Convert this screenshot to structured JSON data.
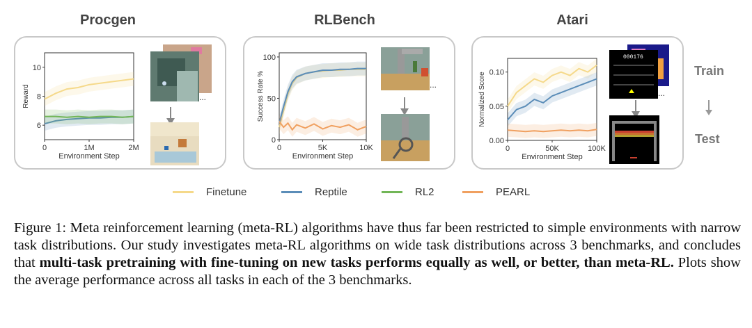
{
  "panels": {
    "procgen": {
      "title": "Procgen",
      "xlabel": "Environment Step",
      "ylabel": "Reward",
      "xticks": [
        "0",
        "1M",
        "2M"
      ],
      "yticks": [
        "6",
        "8",
        "10"
      ]
    },
    "rlbench": {
      "title": "RLBench",
      "xlabel": "Environment Step",
      "ylabel": "Success Rate %",
      "xticks": [
        "0",
        "5K",
        "10K"
      ],
      "yticks": [
        "0",
        "50",
        "100"
      ]
    },
    "atari": {
      "title": "Atari",
      "xlabel": "Environment Step",
      "ylabel": "Normalized Score",
      "xticks": [
        "0",
        "50K",
        "100K"
      ],
      "yticks": [
        "0.00",
        "0.05",
        "0.10"
      ],
      "game_score": "000176"
    }
  },
  "side": {
    "train": "Train",
    "test": "Test"
  },
  "legend": [
    {
      "name": "Finetune",
      "color": "#f5d98a"
    },
    {
      "name": "Reptile",
      "color": "#5b8db8"
    },
    {
      "name": "RL2",
      "color": "#72b657"
    },
    {
      "name": "PEARL",
      "color": "#f0a060"
    }
  ],
  "caption": {
    "part1": "Figure 1: Meta reinforcement learning (meta-RL) algorithms have thus far been restricted to simple environments with narrow task distributions. Our study investigates meta-RL algorithms on wide task distributions across 3 benchmarks, and concludes that ",
    "bold": "multi-task pretraining with fine-tuning on new tasks performs equally as well, or better, than meta-RL.",
    "part2": " Plots show the average performance across all tasks in each of the 3 benchmarks."
  },
  "chart_data": [
    {
      "type": "line",
      "title": "Procgen",
      "xlabel": "Environment Step",
      "ylabel": "Reward",
      "xlim": [
        0,
        2000000
      ],
      "ylim": [
        5,
        11
      ],
      "series": [
        {
          "name": "Finetune",
          "x": [
            0,
            250000,
            500000,
            750000,
            1000000,
            1250000,
            1500000,
            1750000,
            2000000
          ],
          "values": [
            7.8,
            8.2,
            8.5,
            8.6,
            8.8,
            8.9,
            9.0,
            9.1,
            9.2
          ]
        },
        {
          "name": "Reptile",
          "x": [
            0,
            250000,
            500000,
            750000,
            1000000,
            1250000,
            1500000,
            1750000,
            2000000
          ],
          "values": [
            6.1,
            6.3,
            6.4,
            6.45,
            6.5,
            6.5,
            6.55,
            6.55,
            6.6
          ]
        },
        {
          "name": "RL2",
          "x": [
            0,
            250000,
            500000,
            750000,
            1000000,
            1250000,
            1500000,
            1750000,
            2000000
          ],
          "values": [
            6.6,
            6.6,
            6.55,
            6.6,
            6.55,
            6.6,
            6.6,
            6.55,
            6.6
          ]
        }
      ]
    },
    {
      "type": "line",
      "title": "RLBench",
      "xlabel": "Environment Step",
      "ylabel": "Success Rate %",
      "xlim": [
        0,
        10000
      ],
      "ylim": [
        0,
        105
      ],
      "series": [
        {
          "name": "Finetune",
          "x": [
            0,
            500,
            1000,
            1500,
            2000,
            3000,
            4000,
            5000,
            6000,
            7000,
            8000,
            9000,
            10000
          ],
          "values": [
            15,
            35,
            55,
            68,
            75,
            80,
            82,
            83,
            84,
            84,
            85,
            85,
            85
          ]
        },
        {
          "name": "Reptile",
          "x": [
            0,
            500,
            1000,
            1500,
            2000,
            3000,
            4000,
            5000,
            6000,
            7000,
            8000,
            9000,
            10000
          ],
          "values": [
            20,
            40,
            58,
            70,
            76,
            80,
            82,
            84,
            84,
            85,
            85,
            86,
            86
          ]
        },
        {
          "name": "PEARL",
          "x": [
            0,
            500,
            1000,
            1500,
            2000,
            3000,
            4000,
            5000,
            6000,
            7000,
            8000,
            9000,
            10000
          ],
          "values": [
            22,
            15,
            20,
            12,
            18,
            14,
            19,
            13,
            17,
            15,
            18,
            12,
            16
          ]
        }
      ]
    },
    {
      "type": "line",
      "title": "Atari",
      "xlabel": "Environment Step",
      "ylabel": "Normalized Score",
      "xlim": [
        0,
        100000
      ],
      "ylim": [
        0,
        0.12
      ],
      "series": [
        {
          "name": "Finetune",
          "x": [
            0,
            10000,
            20000,
            30000,
            40000,
            50000,
            60000,
            70000,
            80000,
            90000,
            100000
          ],
          "values": [
            0.05,
            0.07,
            0.08,
            0.09,
            0.085,
            0.095,
            0.1,
            0.095,
            0.105,
            0.1,
            0.11
          ]
        },
        {
          "name": "Reptile",
          "x": [
            0,
            10000,
            20000,
            30000,
            40000,
            50000,
            60000,
            70000,
            80000,
            90000,
            100000
          ],
          "values": [
            0.03,
            0.045,
            0.05,
            0.06,
            0.055,
            0.065,
            0.07,
            0.075,
            0.08,
            0.085,
            0.09
          ]
        },
        {
          "name": "PEARL",
          "x": [
            0,
            10000,
            20000,
            30000,
            40000,
            50000,
            60000,
            70000,
            80000,
            90000,
            100000
          ],
          "values": [
            0.015,
            0.014,
            0.013,
            0.014,
            0.013,
            0.014,
            0.015,
            0.014,
            0.015,
            0.014,
            0.016
          ]
        }
      ]
    }
  ]
}
